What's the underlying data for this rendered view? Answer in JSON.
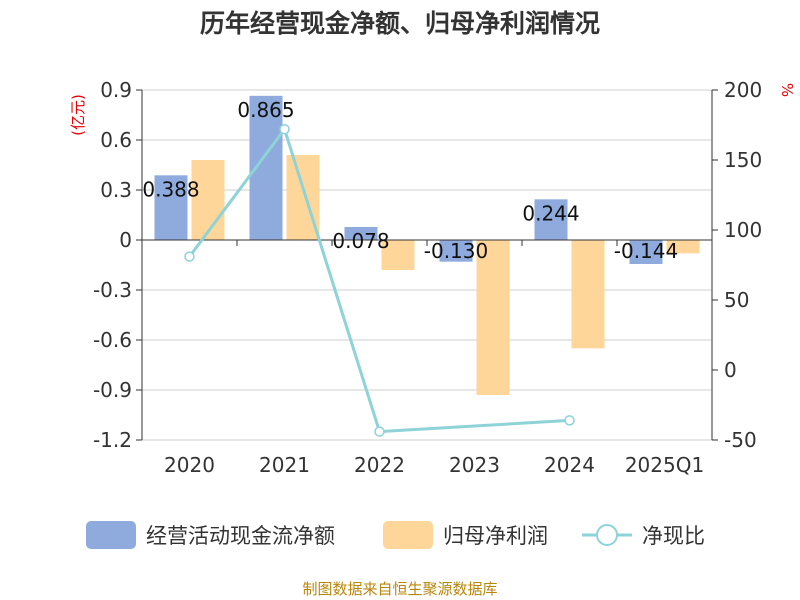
{
  "chart_data": {
    "type": "bar",
    "title": "历年经营现金净额、归母净利润情况",
    "categories": [
      "2020",
      "2021",
      "2022",
      "2023",
      "2024",
      "2025Q1"
    ],
    "left_axis": {
      "unit": "(亿元)",
      "ylim": [
        -1.2,
        0.9
      ],
      "ticks": [
        "0.9",
        "0.6",
        "0.3",
        "0",
        "-0.3",
        "-0.6",
        "-0.9",
        "-1.2"
      ]
    },
    "right_axis": {
      "unit": "%",
      "ylim": [
        -50,
        200
      ],
      "ticks": [
        "200",
        "150",
        "100",
        "50",
        "0",
        "-50"
      ]
    },
    "series": [
      {
        "name": "经营活动现金流净额",
        "type": "bar",
        "axis": "left",
        "color": "#8faadc",
        "values": [
          0.388,
          0.865,
          0.078,
          -0.13,
          0.244,
          -0.144
        ],
        "labels": [
          "0.388",
          "0.865",
          "0.078",
          "-0.130",
          "0.244",
          "-0.144"
        ]
      },
      {
        "name": "归母净利润",
        "type": "bar",
        "axis": "left",
        "color": "#ffd699",
        "values": [
          0.48,
          0.51,
          -0.18,
          -0.93,
          -0.65,
          -0.08
        ]
      },
      {
        "name": "净现比",
        "type": "line",
        "axis": "right",
        "color": "#8dd3d7",
        "values": [
          81,
          172,
          -44,
          null,
          -36,
          null
        ]
      }
    ],
    "legend_position": "bottom",
    "grid": true
  },
  "source": "制图数据来自恒生聚源数据库"
}
